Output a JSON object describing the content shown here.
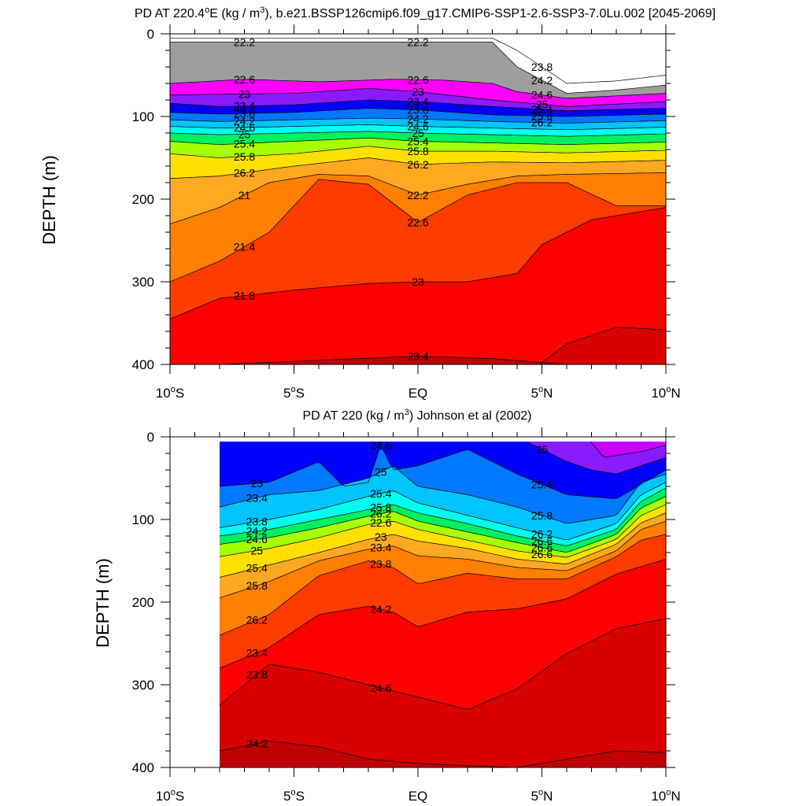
{
  "chart_data": [
    {
      "type": "contour",
      "title_main": "PD AT 220.4",
      "title_lon_sup": "o",
      "title_after_lon": "E (kg / m",
      "title_unit_sup": "3",
      "title_rest": "), b.e21.BSSP126cmip6.f09_g17.CMIP6-SSP1-2.6-SSP3-7.0Lu.002 [2045-2069]",
      "ylabel": "DEPTH (m)",
      "ylim": [
        0,
        400
      ],
      "y_ticks": [
        "0",
        "100",
        "200",
        "300",
        "400"
      ],
      "xlim": [
        -10,
        10
      ],
      "x_ticks": [
        {
          "value": -10,
          "num": "10",
          "deg": "o",
          "hem": "S"
        },
        {
          "value": -5,
          "num": "5",
          "deg": "o",
          "hem": "S"
        },
        {
          "value": 0,
          "num": "EQ",
          "deg": "",
          "hem": ""
        },
        {
          "value": 5,
          "num": "5",
          "deg": "o",
          "hem": "N"
        },
        {
          "value": 10,
          "num": "10",
          "deg": "o",
          "hem": "N"
        }
      ],
      "x_data_start": -10,
      "contour_levels": [
        21,
        21.2,
        21.4,
        21.6,
        21.8,
        22,
        22.2,
        22.4,
        22.6,
        22.8,
        23,
        23.2,
        23.4,
        23.6,
        23.8,
        24,
        24.2,
        24.4,
        24.6,
        24.8,
        25,
        25.2,
        25.4,
        25.6,
        25.8,
        26,
        26.2,
        26.4,
        26.6,
        26.8
      ],
      "level_depths": [
        {
          "level": 21,
          "lat": [
            3,
            4,
            6,
            8,
            10
          ],
          "depth": [
            5,
            20,
            60,
            57,
            50
          ]
        },
        {
          "level": 21.4,
          "lat": [
            3,
            4,
            6,
            8,
            10
          ],
          "depth": [
            10,
            40,
            72,
            68,
            62
          ]
        },
        {
          "level": 21.8,
          "lat": [
            -10,
            -7,
            -4,
            -1,
            1,
            3,
            4,
            6,
            10
          ],
          "depth": [
            60,
            55,
            58,
            55,
            56,
            60,
            70,
            78,
            72
          ]
        },
        {
          "level": 22.2,
          "lat": [
            -10,
            -8,
            -5,
            -2,
            0,
            3,
            6,
            10
          ],
          "depth": [
            74,
            73,
            72,
            66,
            70,
            80,
            88,
            82
          ]
        },
        {
          "level": 22.6,
          "lat": [
            -10,
            -8,
            -5,
            -2,
            0,
            3,
            6,
            10
          ],
          "depth": [
            84,
            88,
            86,
            80,
            82,
            88,
            93,
            90
          ]
        },
        {
          "level": 23,
          "lat": [
            -10,
            -8,
            -5,
            -2,
            0,
            3,
            6,
            10
          ],
          "depth": [
            95,
            97,
            95,
            90,
            92,
            98,
            100,
            97
          ]
        },
        {
          "level": 23.4,
          "lat": [
            -10,
            -8,
            -5,
            -2,
            0,
            3,
            6,
            10
          ],
          "depth": [
            104,
            106,
            104,
            102,
            103,
            106,
            108,
            105
          ]
        },
        {
          "level": 23.8,
          "lat": [
            -10,
            -8,
            -5,
            -2,
            0,
            3,
            6,
            10
          ],
          "depth": [
            112,
            114,
            112,
            110,
            112,
            114,
            116,
            113
          ]
        },
        {
          "level": 24.2,
          "lat": [
            -10,
            -8,
            -5,
            -2,
            0,
            3,
            6,
            10
          ],
          "depth": [
            120,
            122,
            120,
            118,
            120,
            122,
            124,
            121
          ]
        },
        {
          "level": 24.6,
          "lat": [
            -10,
            -8,
            -5,
            -2,
            0,
            3,
            6,
            10
          ],
          "depth": [
            130,
            134,
            130,
            126,
            130,
            132,
            134,
            131
          ]
        },
        {
          "level": 25,
          "lat": [
            -10,
            -8,
            -5,
            -2,
            0,
            3,
            6,
            10
          ],
          "depth": [
            145,
            150,
            145,
            136,
            142,
            142,
            144,
            141
          ]
        },
        {
          "level": 25.4,
          "lat": [
            -10,
            -8,
            -5,
            -2,
            0,
            3,
            6,
            10
          ],
          "depth": [
            175,
            172,
            160,
            150,
            158,
            155,
            156,
            153
          ]
        },
        {
          "level": 25.8,
          "lat": [
            -10,
            -8,
            -6,
            -4,
            -2,
            0,
            2,
            4,
            6,
            10
          ],
          "depth": [
            230,
            210,
            180,
            170,
            172,
            195,
            182,
            172,
            170,
            168
          ]
        },
        {
          "level": 26.2,
          "lat": [
            -10,
            -8,
            -6,
            -4,
            -2,
            0,
            2,
            4,
            6,
            8,
            10
          ],
          "depth": [
            300,
            275,
            240,
            176,
            182,
            228,
            195,
            180,
            180,
            208,
            208
          ]
        },
        {
          "level": 26.4,
          "lat": [
            -10,
            -8,
            -5,
            -2,
            0,
            2,
            4,
            5,
            7,
            10
          ],
          "depth": [
            345,
            320,
            310,
            302,
            300,
            300,
            290,
            255,
            225,
            210
          ]
        },
        {
          "level": 26.6,
          "lat": [
            -10,
            -5,
            0,
            4,
            6,
            8,
            10
          ],
          "depth": [
            420,
            420,
            420,
            420,
            375,
            355,
            358
          ]
        },
        {
          "level": 26.8,
          "lat": [
            -8,
            -4,
            0,
            3,
            6,
            10
          ],
          "depth": [
            400,
            395,
            390,
            393,
            400,
            400
          ]
        }
      ],
      "labels": [
        "22.2",
        "22.6",
        "23",
        "23.4",
        "23.8",
        "24.2",
        "24.6",
        "25",
        "25.4",
        "25.8",
        "26.2",
        "21",
        "21.4",
        "21.8",
        "22.2",
        "22.6",
        "23",
        "23.4",
        "23.8",
        "24.2",
        "24.6",
        "25",
        "25.4",
        "25.8",
        "26.2",
        "22.2",
        "22.6",
        "23",
        "23.4",
        "23.8",
        "24.2",
        "24.6",
        "25",
        "25.4",
        "25.8",
        "26.2"
      ]
    },
    {
      "type": "contour",
      "title_main": "PD AT 220 (kg / m",
      "title_unit_sup": "3",
      "title_rest": ") Johnson et al (2002)",
      "ylabel": "DEPTH (m)",
      "ylim": [
        0,
        400
      ],
      "y_ticks": [
        "0",
        "100",
        "200",
        "300",
        "400"
      ],
      "xlim": [
        -10,
        10
      ],
      "x_ticks": [
        {
          "value": -10,
          "num": "10",
          "deg": "o",
          "hem": "S"
        },
        {
          "value": -5,
          "num": "5",
          "deg": "o",
          "hem": "S"
        },
        {
          "value": 0,
          "num": "EQ",
          "deg": "",
          "hem": ""
        },
        {
          "value": 5,
          "num": "5",
          "deg": "o",
          "hem": "N"
        },
        {
          "value": 10,
          "num": "10",
          "deg": "o",
          "hem": "N"
        }
      ],
      "x_data_start": -8,
      "contour_levels": [
        21.8,
        22,
        22.2,
        22.4,
        22.6,
        22.8,
        23,
        23.2,
        23.4,
        23.6,
        23.8,
        24,
        24.2,
        24.4,
        24.6,
        24.8,
        25,
        25.2,
        25.4,
        25.6,
        25.8,
        26,
        26.2,
        26.4,
        26.6,
        26.8
      ],
      "level_depths": [
        {
          "level": 22.2,
          "lat": [
            6.8,
            7.5,
            8.5,
            9,
            10
          ],
          "depth": [
            0,
            25,
            20,
            18,
            10
          ]
        },
        {
          "level": 22.6,
          "lat": [
            4,
            5,
            6,
            7,
            8,
            9,
            10
          ],
          "depth": [
            0,
            15,
            30,
            40,
            45,
            35,
            25
          ]
        },
        {
          "level": 23,
          "lat": [
            -8,
            -6,
            -4,
            -3,
            -2,
            -1.5,
            -1,
            0,
            2,
            4,
            6,
            8,
            10
          ],
          "depth": [
            60,
            55,
            30,
            60,
            55,
            10,
            40,
            35,
            15,
            45,
            70,
            75,
            40
          ]
        },
        {
          "level": 23.4,
          "lat": [
            -8,
            -6,
            -4,
            -2,
            -1,
            0,
            2,
            4,
            6,
            8,
            9,
            10
          ],
          "depth": [
            85,
            70,
            65,
            50,
            35,
            60,
            70,
            85,
            105,
            95,
            55,
            45
          ]
        },
        {
          "level": 23.8,
          "lat": [
            -8,
            -6,
            -4,
            -2,
            -1,
            0,
            2,
            4,
            6,
            8,
            9,
            10
          ],
          "depth": [
            110,
            100,
            88,
            72,
            65,
            80,
            95,
            110,
            125,
            105,
            70,
            55
          ]
        },
        {
          "level": 24.2,
          "lat": [
            -8,
            -6,
            -4,
            -2,
            -1,
            0,
            2,
            4,
            6,
            8,
            9,
            10
          ],
          "depth": [
            120,
            112,
            100,
            88,
            82,
            92,
            105,
            120,
            132,
            112,
            78,
            62
          ]
        },
        {
          "level": 24.6,
          "lat": [
            -8,
            -6,
            -4,
            -2,
            -1,
            0,
            2,
            4,
            6,
            8,
            9,
            10
          ],
          "depth": [
            130,
            122,
            110,
            96,
            90,
            102,
            115,
            128,
            140,
            118,
            86,
            72
          ]
        },
        {
          "level": 25,
          "lat": [
            -8,
            -6,
            -4,
            -2,
            -1,
            0,
            2,
            4,
            6,
            8,
            9,
            10
          ],
          "depth": [
            145,
            135,
            122,
            106,
            102,
            112,
            125,
            138,
            146,
            124,
            95,
            82
          ]
        },
        {
          "level": 25.4,
          "lat": [
            -8,
            -6,
            -4,
            -2,
            -1,
            0,
            2,
            4,
            6,
            8,
            9,
            10
          ],
          "depth": [
            170,
            155,
            140,
            124,
            118,
            126,
            135,
            148,
            154,
            130,
            104,
            92
          ]
        },
        {
          "level": 25.8,
          "lat": [
            -8,
            -6,
            -4,
            -2,
            -1,
            0,
            2,
            4,
            6,
            8,
            9,
            10
          ],
          "depth": [
            195,
            175,
            150,
            136,
            132,
            144,
            148,
            158,
            162,
            138,
            112,
            102
          ]
        },
        {
          "level": 26.2,
          "lat": [
            -8,
            -6,
            -4,
            -2,
            -1,
            0,
            2,
            4,
            6,
            8,
            9,
            10
          ],
          "depth": [
            240,
            215,
            168,
            150,
            158,
            178,
            165,
            172,
            172,
            145,
            125,
            118
          ]
        },
        {
          "level": 26.4,
          "lat": [
            -8,
            -6,
            -4,
            -2,
            -1,
            0,
            2,
            4,
            6,
            8,
            10
          ],
          "depth": [
            280,
            255,
            215,
            205,
            212,
            230,
            212,
            208,
            196,
            166,
            148
          ]
        },
        {
          "level": 26.6,
          "lat": [
            -8,
            -6,
            -4,
            -2,
            0,
            2,
            4,
            6,
            8,
            10
          ],
          "depth": [
            325,
            275,
            285,
            300,
            315,
            330,
            305,
            262,
            232,
            220
          ]
        },
        {
          "level": 26.8,
          "lat": [
            -8,
            -6,
            -4,
            -2,
            0,
            2,
            4,
            6,
            8,
            10
          ],
          "depth": [
            380,
            368,
            375,
            390,
            395,
            398,
            400,
            390,
            380,
            382
          ]
        }
      ],
      "labels": [
        "23",
        "23.4",
        "23.8",
        "24.2",
        "24.6",
        "25",
        "25.4",
        "25.8",
        "26.2",
        "23.4",
        "23.8",
        "24.2",
        "24.6",
        "25",
        "25.4",
        "25.8",
        "26.2",
        "22.6",
        "23",
        "23.4",
        "23.8",
        "24.2",
        "24.6",
        "25",
        "25.4",
        "25.8",
        "26.2",
        "26.6",
        "26.6",
        "26.6"
      ]
    }
  ],
  "colors": {
    "d21.0": "#ffffff",
    "d21.2": "#707070",
    "d21.4": "#9e9e9e",
    "d21.6": "#c4c4c4",
    "d21.8": "#ff00ff",
    "d22.0": "#c800ff",
    "d22.2": "#8a1aff",
    "d22.4": "#4a00e0",
    "d22.6": "#0000ff",
    "d22.8": "#0048ff",
    "d23.0": "#0078ff",
    "d23.2": "#00a0ff",
    "d23.4": "#00c4ff",
    "d23.6": "#00e4ff",
    "d23.8": "#00ffee",
    "d24.0": "#00ffb0",
    "d24.2": "#00f060",
    "d24.4": "#00d000",
    "d24.6": "#a8ff00",
    "d24.8": "#ffff00",
    "d25.0": "#ffe000",
    "d25.2": "#ffc400",
    "d25.4": "#ffa820",
    "d25.6": "#ff9a30",
    "d25.8": "#ff8000",
    "d26.0": "#ff5a00",
    "d26.2": "#ff3c00",
    "d26.4": "#ff0000",
    "d26.6": "#d80000",
    "d26.8": "#c00000",
    "d27.0": "#b00000"
  }
}
